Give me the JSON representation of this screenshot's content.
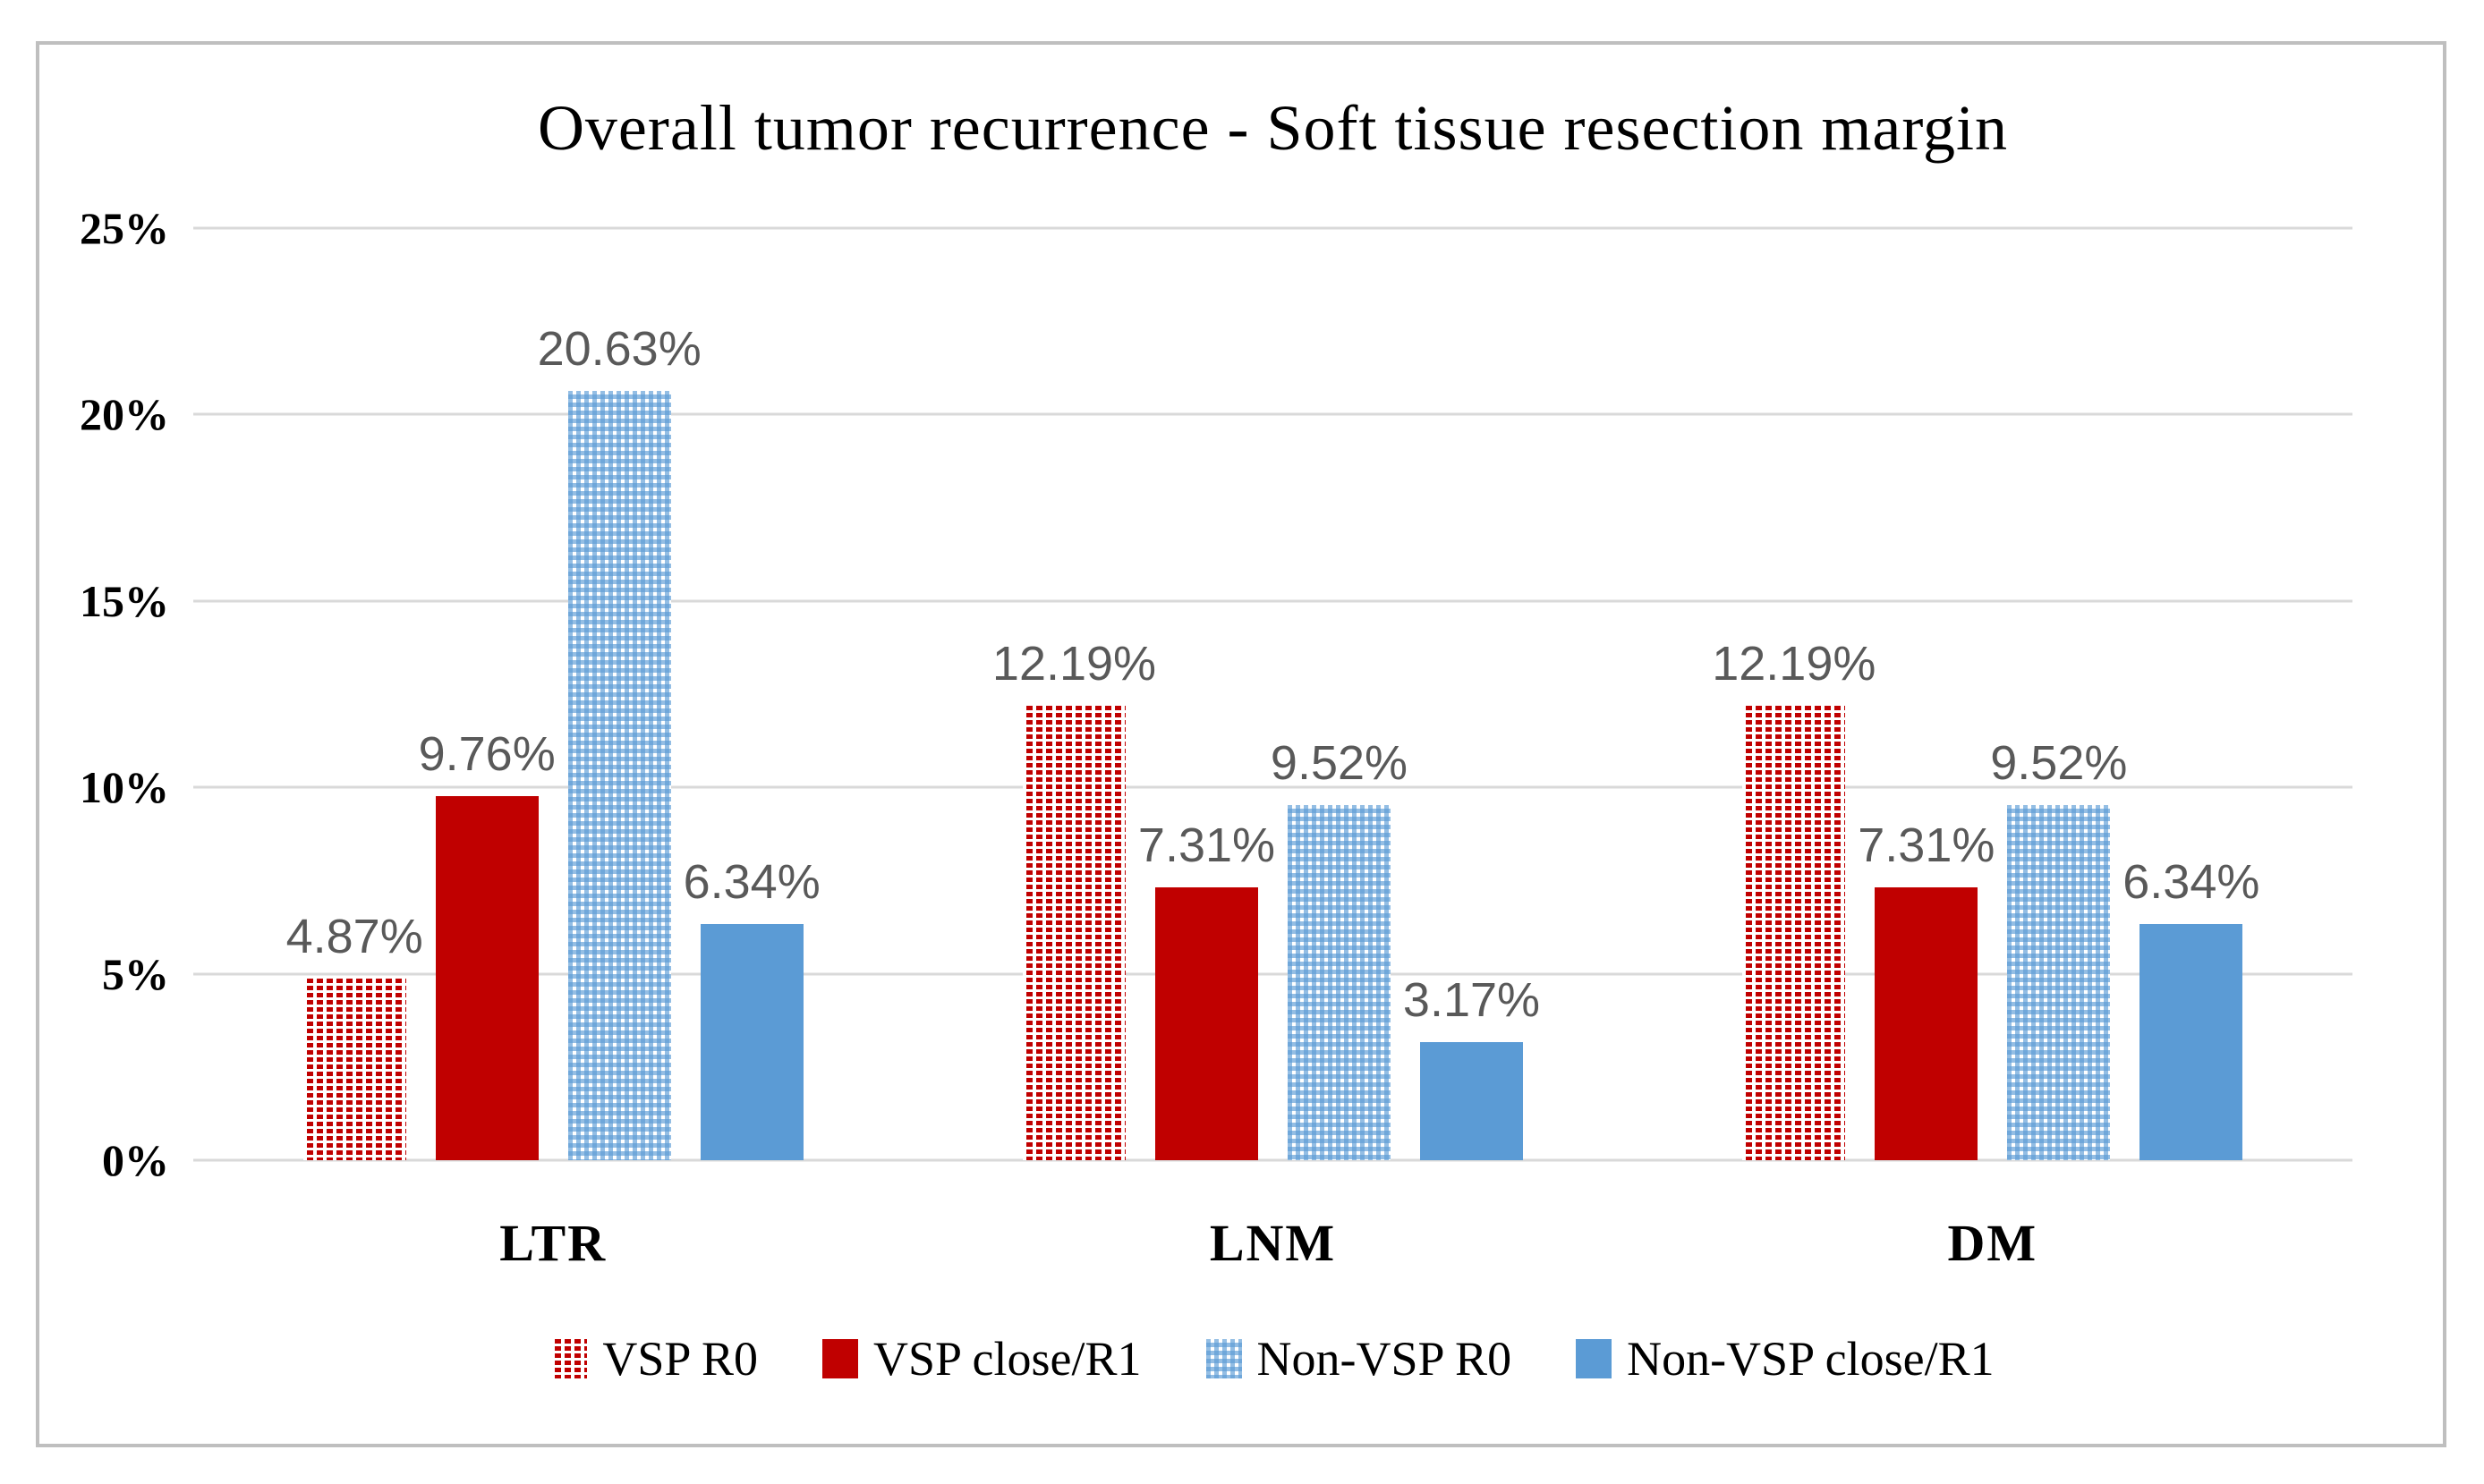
{
  "figure": {
    "background_color": "#FFFFFF",
    "border_color": "#BFBFBF"
  },
  "chart_data": {
    "type": "bar",
    "title": "Overall tumor recurrence - Soft tissue resection margin",
    "categories": [
      "LTR",
      "LNM",
      "DM"
    ],
    "series": [
      {
        "name": "VSP R0",
        "fill": "dotted-red",
        "color": "#C00000",
        "values": [
          4.87,
          12.19,
          12.19
        ],
        "data_labels": [
          "4.87%",
          "12.19%",
          "12.19%"
        ]
      },
      {
        "name": "VSP close/R1",
        "fill": "solid-red",
        "color": "#C00000",
        "values": [
          9.76,
          7.31,
          7.31
        ],
        "data_labels": [
          "9.76%",
          "7.31%",
          "7.31%"
        ]
      },
      {
        "name": "Non-VSP R0",
        "fill": "dotted-blue",
        "color": "#5B9BD5",
        "values": [
          20.63,
          9.52,
          9.52
        ],
        "data_labels": [
          "20.63%",
          "9.52%",
          "9.52%"
        ]
      },
      {
        "name": "Non-VSP close/R1",
        "fill": "solid-blue",
        "color": "#5B9BD5",
        "values": [
          6.34,
          3.17,
          6.34
        ],
        "data_labels": [
          "6.34%",
          "3.17%",
          "6.34%"
        ]
      }
    ],
    "y_axis": {
      "min": 0,
      "max": 25,
      "tick_step": 5,
      "tick_labels": [
        "25%",
        "20%",
        "15%",
        "10%",
        "5%",
        "0%"
      ],
      "unit": "%"
    },
    "grid": true,
    "gridline_color": "#D9D9D9",
    "data_label_color": "#595959",
    "legend_position": "bottom"
  }
}
